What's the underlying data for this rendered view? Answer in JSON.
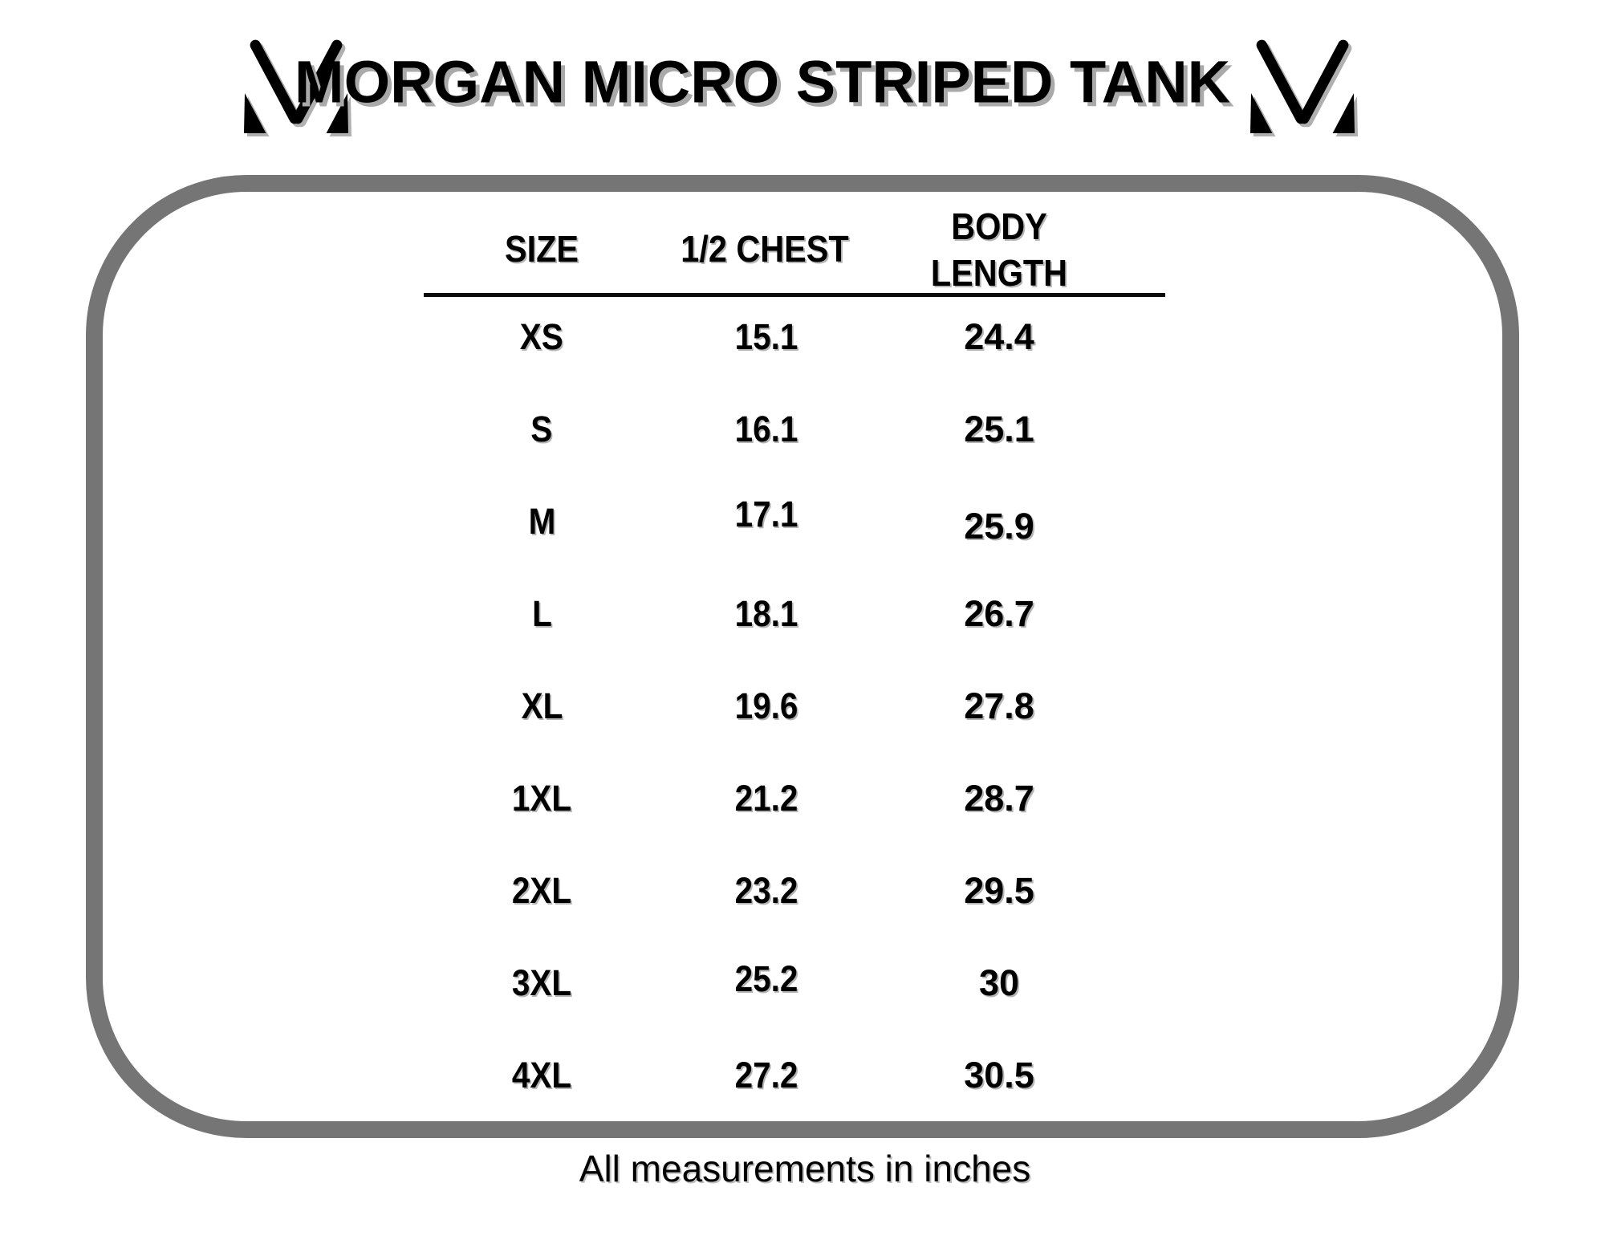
{
  "title": "MORGAN MICRO STRIPED TANK",
  "brand": {
    "logo_icon": "m-brand-mark-icon"
  },
  "table": {
    "headers": [
      "SIZE",
      "1/2 CHEST",
      "BODY LENGTH"
    ],
    "rows": [
      {
        "size": "XS",
        "chest": "15.1",
        "body": "24.4"
      },
      {
        "size": "S",
        "chest": "16.1",
        "body": "25.1"
      },
      {
        "size": "M",
        "chest": "17.1",
        "body": "25.9"
      },
      {
        "size": "L",
        "chest": "18.1",
        "body": "26.7"
      },
      {
        "size": "XL",
        "chest": "19.6",
        "body": "27.8"
      },
      {
        "size": "1XL",
        "chest": "21.2",
        "body": "28.7"
      },
      {
        "size": "2XL",
        "chest": "23.2",
        "body": "29.5"
      },
      {
        "size": "3XL",
        "chest": "25.2",
        "body": "30"
      },
      {
        "size": "4XL",
        "chest": "27.2",
        "body": "30.5"
      }
    ]
  },
  "footer": {
    "note": "All measurements in inches"
  },
  "colors": {
    "border_gray": "#757575",
    "shadow_gray": "#a9a9a9",
    "text": "#000000",
    "background": "#ffffff"
  }
}
